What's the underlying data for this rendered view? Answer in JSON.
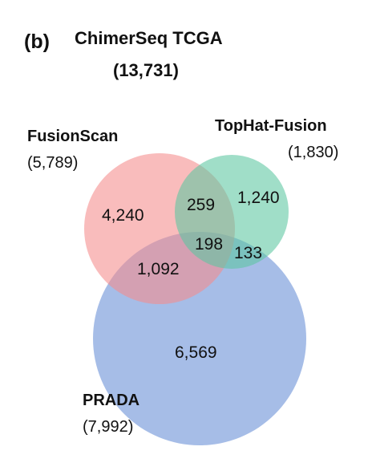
{
  "panel_label": "(b)",
  "title": {
    "line1": "ChimerSeq TCGA",
    "line2": "(13,731)"
  },
  "sets": [
    {
      "name": "FusionScan",
      "total": "(5,789)",
      "color": "#f48c8c"
    },
    {
      "name": "TopHat-Fusion",
      "total": "(1,830)",
      "color": "#5cc7a0"
    },
    {
      "name": "PRADA",
      "total": "(7,992)",
      "color": "#6f95d9"
    }
  ],
  "regions": {
    "fusionscan_only": "4,240",
    "tophat_only": "1,240",
    "prada_only": "6,569",
    "fusionscan_tophat": "259",
    "fusionscan_prada": "1,092",
    "tophat_prada": "133",
    "all_three": "198"
  }
}
